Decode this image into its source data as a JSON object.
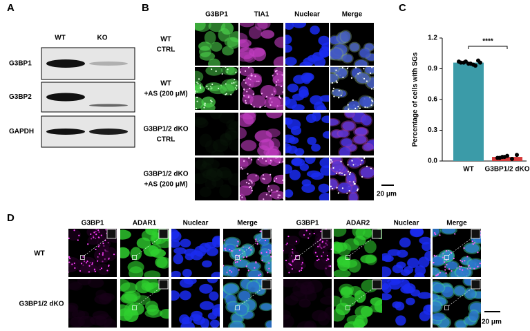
{
  "panel_a": {
    "label": "A",
    "columns": [
      "WT",
      "KO"
    ],
    "rows": [
      "G3BP1",
      "G3BP2",
      "GAPDH"
    ]
  },
  "panel_b": {
    "label": "B",
    "columns": [
      "G3BP1",
      "TIA1",
      "Nuclear",
      "Merge"
    ],
    "rows": [
      [
        "WT",
        "CTRL"
      ],
      [
        "WT",
        "+AS (200 μM)"
      ],
      [
        "G3BP1/2 dKO",
        "CTRL"
      ],
      [
        "G3BP1/2 dKO",
        "+AS (200 μM)"
      ]
    ],
    "scale_bar": "20 μm"
  },
  "chart_data": {
    "type": "bar",
    "panel_label": "C",
    "ylabel": "Percentage of cells with SGs",
    "categories": [
      "WT",
      "G3BP1/2 dKO"
    ],
    "values": [
      0.96,
      0.04
    ],
    "colors": [
      "#3b9ba8",
      "#d63a3a"
    ],
    "points": [
      [
        0.97,
        0.96,
        0.95,
        0.94,
        0.98,
        0.96,
        0.97,
        0.95,
        0.93,
        0.96
      ],
      [
        0.03,
        0.04,
        0.05,
        0.02,
        0.06,
        0.03,
        0.04
      ]
    ],
    "annotation": "****",
    "ylim": [
      0,
      1.2
    ],
    "yticks": [
      {
        "value": 0,
        "label": "0.0"
      },
      {
        "value": 0.3,
        "label": "0.3"
      },
      {
        "value": 0.6,
        "label": "0.6"
      },
      {
        "value": 0.9,
        "label": "0.9"
      },
      {
        "value": 1.2,
        "label": "1.2"
      }
    ]
  },
  "panel_d": {
    "label": "D",
    "groups": [
      {
        "columns": [
          "G3BP1",
          "ADAR1",
          "Nuclear",
          "Merge"
        ]
      },
      {
        "columns": [
          "G3BP1",
          "ADAR2",
          "Nuclear",
          "Merge"
        ]
      }
    ],
    "rows": [
      "WT",
      "G3BP1/2 dKO"
    ],
    "scale_bar": "20 μm"
  }
}
